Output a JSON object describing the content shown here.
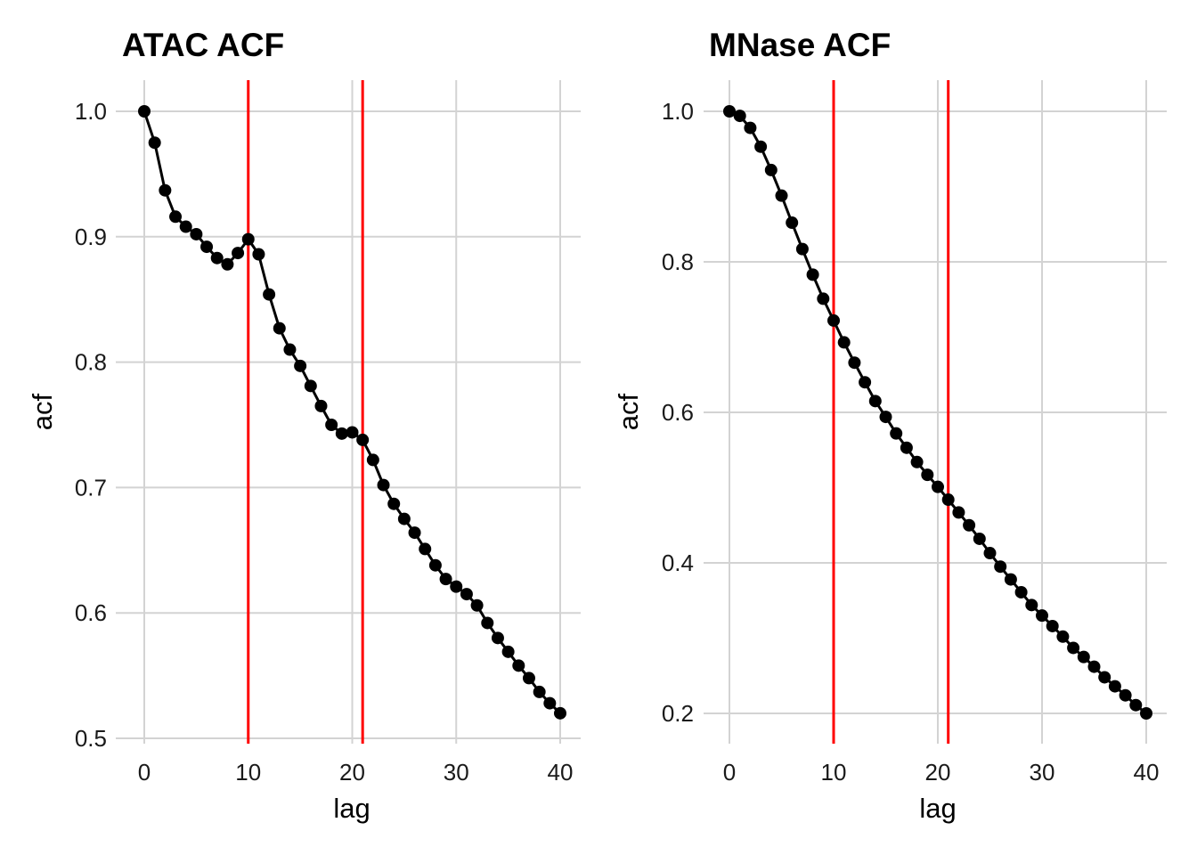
{
  "chart_data": [
    {
      "type": "line",
      "title": "ATAC ACF",
      "xlabel": "lag",
      "ylabel": "acf",
      "xlim": [
        0,
        40
      ],
      "ylim": [
        0.5,
        1.0
      ],
      "xticks": [
        0,
        10,
        20,
        30,
        40
      ],
      "yticks": [
        0.5,
        0.6,
        0.7,
        0.8,
        0.9,
        1.0
      ],
      "ytick_labels": [
        "0.5",
        "0.6",
        "0.7",
        "0.8",
        "0.9",
        "1.0"
      ],
      "grid": true,
      "markers": true,
      "line_color": "#000000",
      "vlines": [
        10,
        21
      ],
      "vline_color": "#ff0000",
      "x": [
        0,
        1,
        2,
        3,
        4,
        5,
        6,
        7,
        8,
        9,
        10,
        11,
        12,
        13,
        14,
        15,
        16,
        17,
        18,
        19,
        20,
        21,
        22,
        23,
        24,
        25,
        26,
        27,
        28,
        29,
        30,
        31,
        32,
        33,
        34,
        35,
        36,
        37,
        38,
        39,
        40
      ],
      "y": [
        1.0,
        0.975,
        0.937,
        0.916,
        0.908,
        0.902,
        0.892,
        0.883,
        0.878,
        0.887,
        0.898,
        0.886,
        0.854,
        0.827,
        0.81,
        0.797,
        0.781,
        0.765,
        0.75,
        0.743,
        0.744,
        0.738,
        0.722,
        0.702,
        0.687,
        0.675,
        0.664,
        0.651,
        0.638,
        0.627,
        0.621,
        0.615,
        0.606,
        0.592,
        0.58,
        0.569,
        0.558,
        0.548,
        0.537,
        0.528,
        0.52
      ]
    },
    {
      "type": "line",
      "title": "MNase ACF",
      "xlabel": "lag",
      "ylabel": "acf",
      "xlim": [
        0,
        40
      ],
      "ylim": [
        0.2,
        1.0
      ],
      "xticks": [
        0,
        10,
        20,
        30,
        40
      ],
      "yticks": [
        0.2,
        0.4,
        0.6,
        0.8,
        1.0
      ],
      "ytick_labels": [
        "0.2",
        "0.4",
        "0.6",
        "0.8",
        "1.0"
      ],
      "grid": true,
      "markers": true,
      "line_color": "#000000",
      "vlines": [
        10,
        21
      ],
      "vline_color": "#ff0000",
      "x": [
        0,
        1,
        2,
        3,
        4,
        5,
        6,
        7,
        8,
        9,
        10,
        11,
        12,
        13,
        14,
        15,
        16,
        17,
        18,
        19,
        20,
        21,
        22,
        23,
        24,
        25,
        26,
        27,
        28,
        29,
        30,
        31,
        32,
        33,
        34,
        35,
        36,
        37,
        38,
        39,
        40
      ],
      "y": [
        1.0,
        0.994,
        0.978,
        0.953,
        0.922,
        0.888,
        0.852,
        0.817,
        0.783,
        0.751,
        0.722,
        0.693,
        0.666,
        0.64,
        0.615,
        0.594,
        0.572,
        0.553,
        0.534,
        0.517,
        0.501,
        0.484,
        0.467,
        0.45,
        0.432,
        0.413,
        0.395,
        0.378,
        0.361,
        0.344,
        0.33,
        0.316,
        0.302,
        0.287,
        0.275,
        0.262,
        0.248,
        0.236,
        0.224,
        0.211,
        0.2
      ]
    }
  ]
}
